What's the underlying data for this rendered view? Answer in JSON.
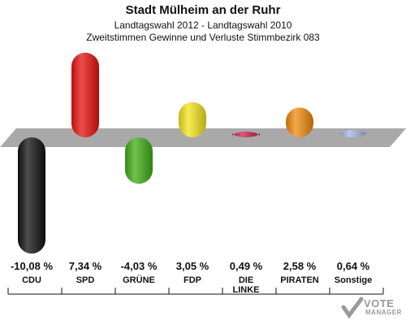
{
  "chart_data": {
    "type": "bar",
    "title": "Stadt Mülheim an der Ruhr",
    "subtitle1": "Landtagswahl 2012 - Landtagswahl 2010",
    "subtitle2": "Zweitstimmen Gewinne und Verluste Stimmbezirk 083",
    "categories": [
      "CDU",
      "SPD",
      "GRÜNE",
      "FDP",
      "DIE LINKE",
      "PIRATEN",
      "Sonstige"
    ],
    "values": [
      -10.08,
      7.34,
      -4.03,
      3.05,
      0.49,
      2.58,
      0.64
    ],
    "value_labels": [
      "-10,08 %",
      "7,34 %",
      "-4,03 %",
      "3,05 %",
      "0,49 %",
      "2,58 %",
      "0,64 %"
    ],
    "colors": [
      "#111111",
      "#e8130f",
      "#3fae16",
      "#f2e41e",
      "#cc1f4f",
      "#f08a0c",
      "#a9b5e0"
    ],
    "ylim": [
      -10.08,
      7.34
    ]
  },
  "logo": {
    "line1": "VOTE",
    "line2": "MANAGER"
  }
}
